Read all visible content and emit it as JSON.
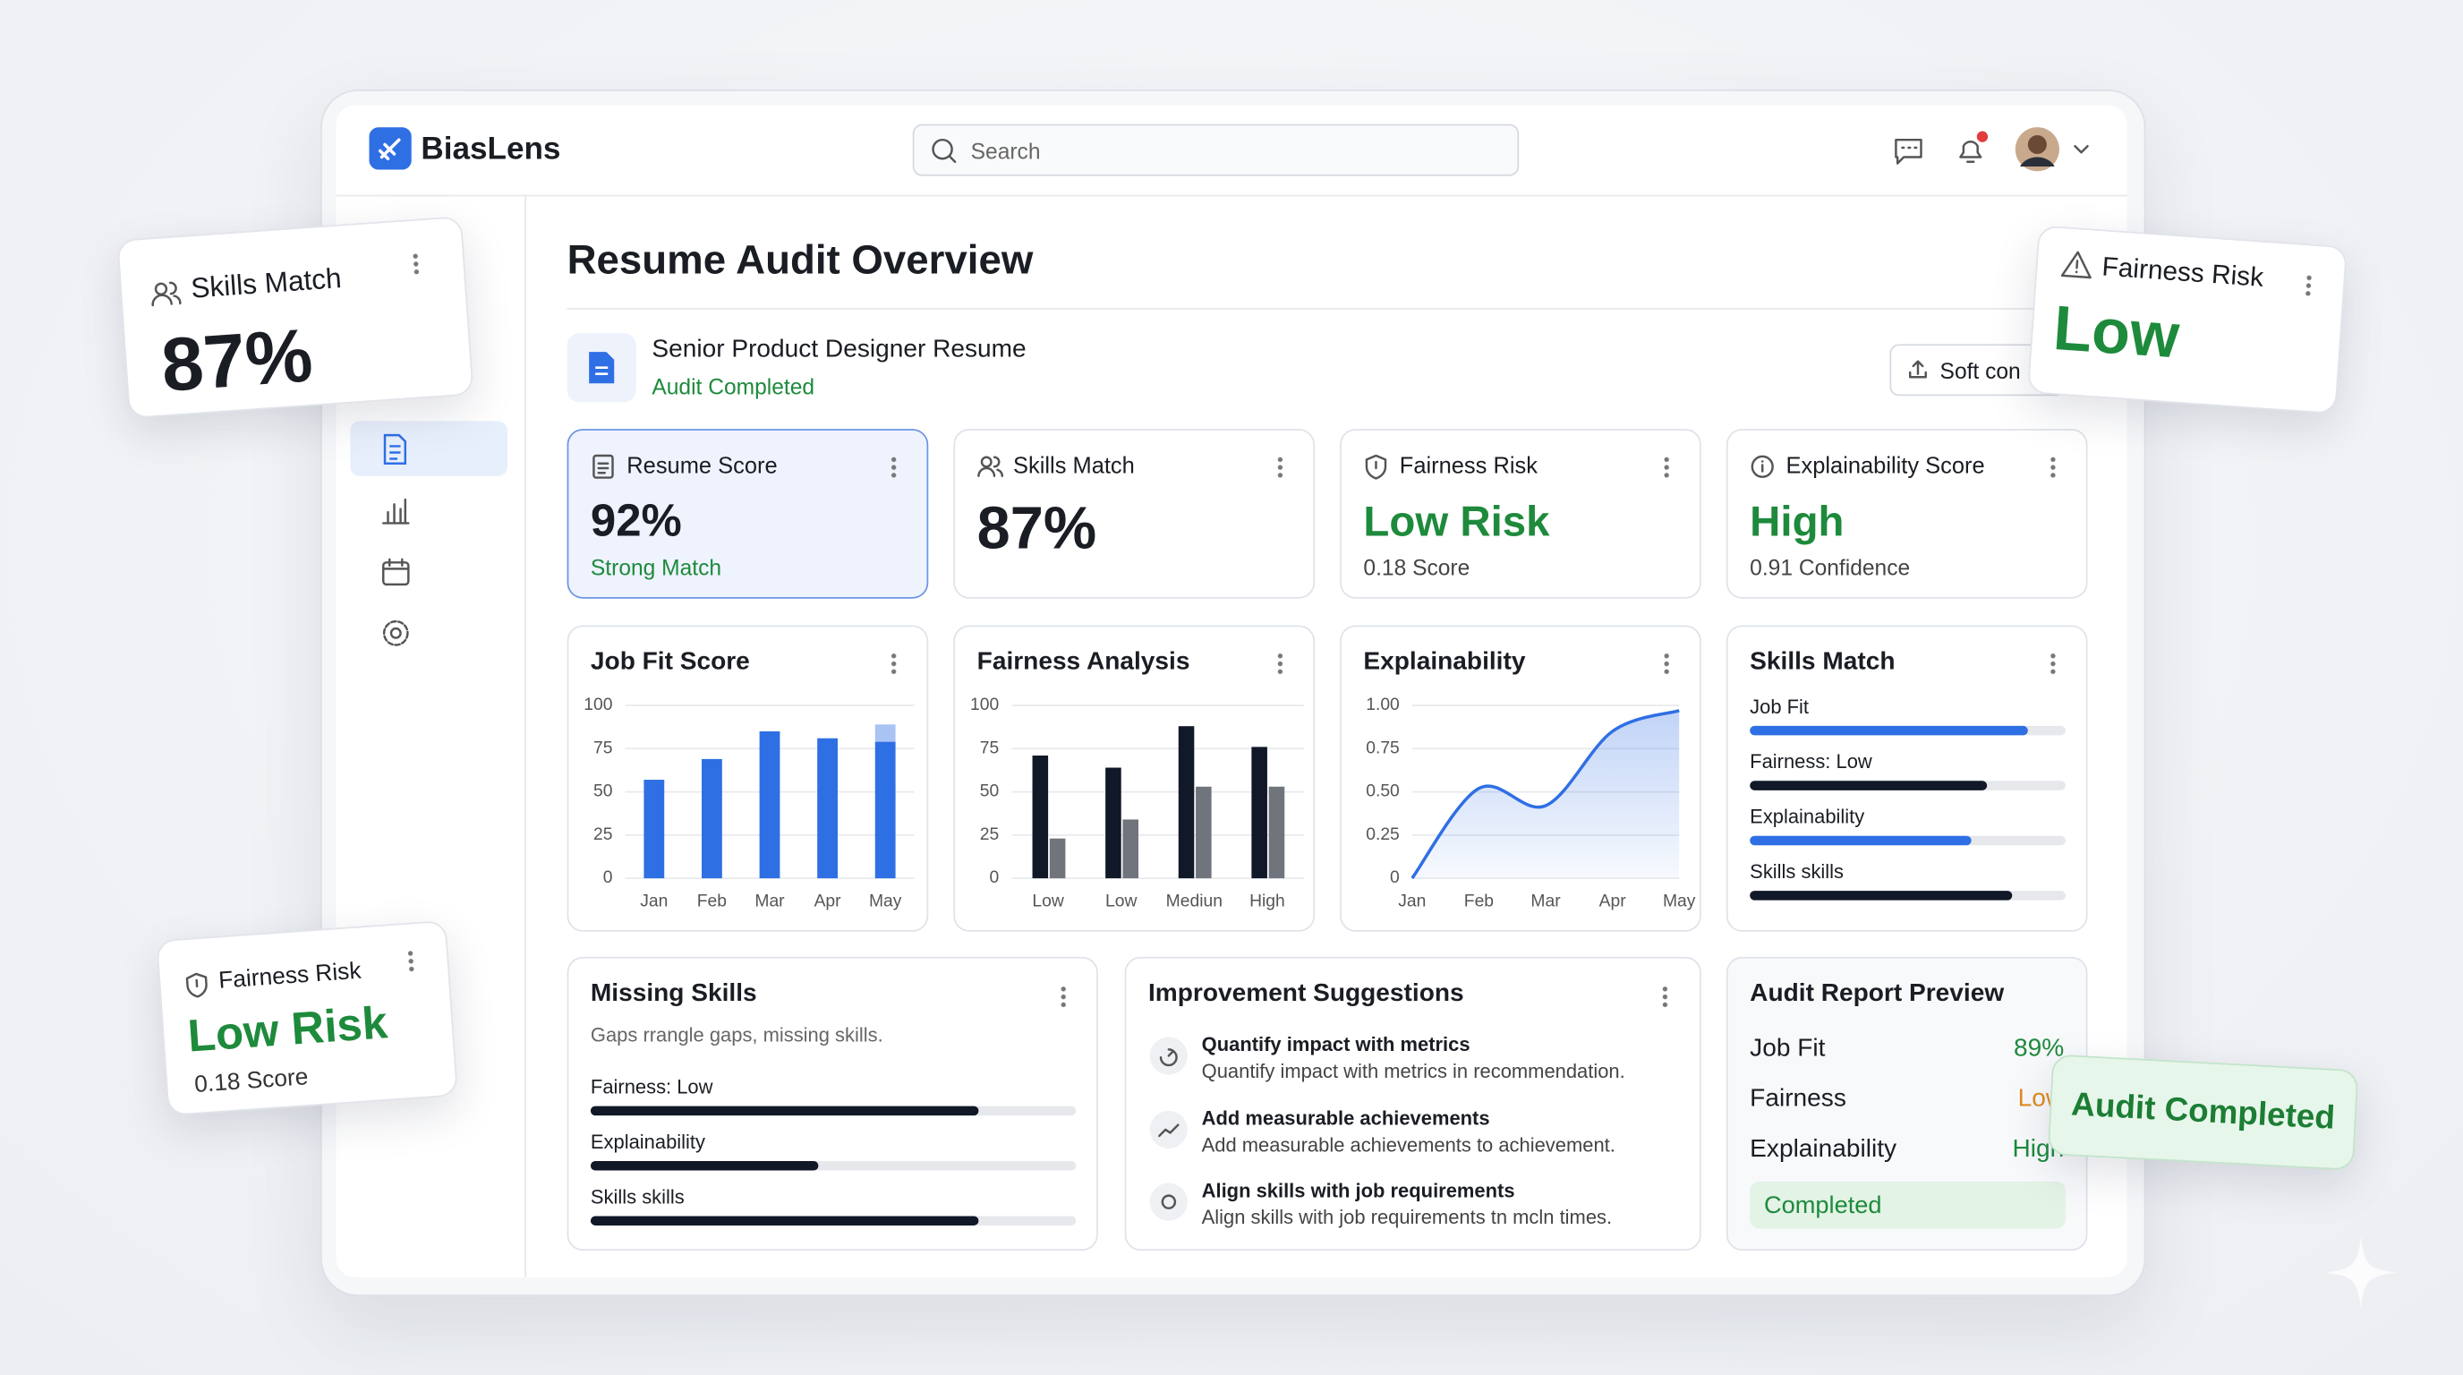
{
  "app": {
    "name": "BiasLens",
    "search_placeholder": "Search"
  },
  "page": {
    "title": "Resume Audit Overview",
    "document": "Senior Product Designer Resume",
    "status": "Audit Completed",
    "action": "Soft con"
  },
  "stats": [
    {
      "title": "Resume Score",
      "value": "92%",
      "note": "Strong Match"
    },
    {
      "title": "Skills Match",
      "value": "87%"
    },
    {
      "title": "Fairness Risk",
      "value": "Low Risk",
      "note": "0.18 Score"
    },
    {
      "title": "Explainability Score",
      "value": "High",
      "note": "0.91 Confidence"
    }
  ],
  "job_fit_chart": {
    "type": "bar",
    "title": "Job Fit Score",
    "stacked": true,
    "categories": [
      "Jan",
      "Feb",
      "Mar",
      "Apr",
      "May"
    ],
    "series": [
      {
        "color": "#2f6fe4",
        "values": [
          57,
          69,
          85,
          81,
          79
        ]
      },
      {
        "color": "#a9c3f3",
        "values": [
          0,
          0,
          0,
          0,
          10
        ]
      }
    ],
    "ylim": [
      0,
      100
    ],
    "yticks": [
      0,
      25,
      50,
      75,
      100
    ],
    "grid": true
  },
  "fairness_chart": {
    "type": "bar",
    "title": "Fairness Analysis",
    "stacked": false,
    "categories": [
      "Low",
      "Low",
      "Mediun",
      "High"
    ],
    "series": [
      {
        "color": "#111827",
        "values": [
          71,
          64,
          88,
          76
        ]
      },
      {
        "color": "#70747d",
        "values": [
          23,
          34,
          53,
          53
        ]
      }
    ],
    "ylim": [
      0,
      100
    ],
    "yticks": [
      0,
      25,
      50,
      75,
      100
    ],
    "grid": true
  },
  "explain_chart": {
    "type": "area",
    "title": "Explainability",
    "categories": [
      "Jan",
      "Feb",
      "Mar",
      "Apr",
      "May"
    ],
    "values": [
      0,
      0.52,
      0.42,
      0.85,
      0.97
    ],
    "color": "#2f6fe4",
    "ylim": [
      0,
      1
    ],
    "yticks": [
      0,
      {
        "value": 0.25,
        "label": "0.25"
      },
      {
        "value": 0.5,
        "label": "0.50"
      },
      {
        "value": 0.75,
        "label": "0.75"
      },
      {
        "value": 1,
        "label": "1.00"
      }
    ],
    "grid": true
  },
  "skills_card": {
    "title": "Skills Match",
    "items": [
      {
        "label": "Job Fit",
        "value": 88,
        "color": "#2f6fe4"
      },
      {
        "label": "Fairness: Low",
        "value": 75,
        "color": "#111827"
      },
      {
        "label": "Explainability",
        "value": 70,
        "color": "#2f6fe4"
      },
      {
        "label": "Skills skills",
        "value": 83,
        "color": "#111827"
      }
    ]
  },
  "missing_skills": {
    "title": "Missing Skills",
    "subtitle": "Gaps rrangle gaps, missing skills.",
    "items": [
      {
        "label": "Fairness: Low",
        "value": 80,
        "color": "#111827"
      },
      {
        "label": "Explainability",
        "value": 47,
        "color": "#111827"
      },
      {
        "label": "Skills skills",
        "value": 80,
        "color": "#111827"
      }
    ]
  },
  "suggestions": {
    "title": "Improvement Suggestions",
    "items": [
      {
        "title": "Quantify impact with metrics",
        "text": "Quantify impact with metrics in recommendation."
      },
      {
        "title": "Add measurable achievements",
        "text": "Add measurable achievements to achievement."
      },
      {
        "title": "Align skills with job requirements",
        "text": "Align skills with job requirements tn mcln times."
      }
    ]
  },
  "report": {
    "title": "Audit Report Preview",
    "rows": [
      {
        "label": "Job Fit",
        "value": "89%",
        "color": "#1e8a3c"
      },
      {
        "label": "Fairness",
        "value": "Low",
        "color": "#e08a1e"
      },
      {
        "label": "Explainability",
        "value": "High",
        "color": "#1e8a3c"
      }
    ],
    "status": "Completed"
  },
  "floating": {
    "skills": {
      "title": "Skills Match",
      "value": "87%"
    },
    "fairness_top": {
      "title": "Fairness Risk",
      "value": "Low"
    },
    "fairness_left": {
      "title": "Fairness Risk",
      "value": "Low Risk",
      "note": "0.18 Score"
    },
    "badge": "Audit Completed"
  }
}
